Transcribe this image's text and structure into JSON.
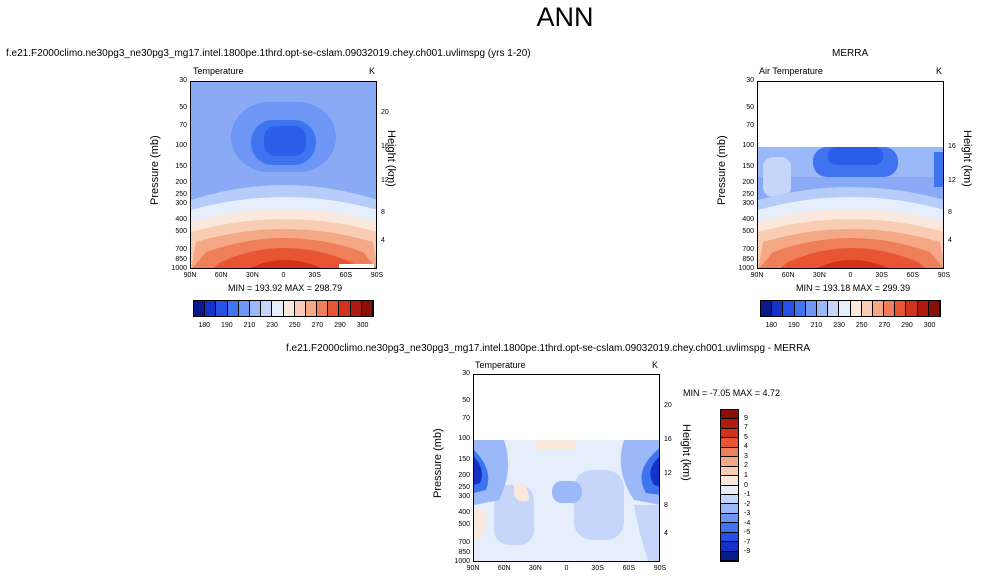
{
  "figure_title": "ANN",
  "panels": [
    {
      "caption": "f.e21.F2000climo.ne30pg3_ne30pg3_mg17.intel.1800pe.1thrd.opt-se-cslam.09032019.chey.ch001.uvlimspg (yrs 1-20)",
      "var_label": "Temperature",
      "units": "K",
      "ylabel": "Pressure (mb)",
      "y2label": "Height (km)",
      "minmax": "MIN = 193.92   MAX = 298.79"
    },
    {
      "caption": "MERRA",
      "var_label": "Air Temperature",
      "units": "K",
      "ylabel": "Pressure (mb)",
      "y2label": "Height (km)",
      "minmax": "MIN = 193.18   MAX = 299.39"
    },
    {
      "caption": "f.e21.F2000climo.ne30pg3_ne30pg3_mg17.intel.1800pe.1thrd.opt-se-cslam.09032019.chey.ch001.uvlimspg - MERRA",
      "var_label": "Temperature",
      "units": "K",
      "ylabel": "Pressure (mb)",
      "y2label": "Height (km)",
      "minmax": "MIN = -7.05   MAX =  4.72"
    }
  ],
  "pressure_ticks": [
    "30",
    "50",
    "70",
    "100",
    "150",
    "200",
    "250",
    "300",
    "400",
    "500",
    "700",
    "850",
    "1000"
  ],
  "height_ticks_top": [
    "20",
    "16",
    "12",
    "8",
    "4"
  ],
  "height_ticks_merra": [
    "16",
    "12",
    "8",
    "4"
  ],
  "lat_ticks": [
    "90N",
    "60N",
    "30N",
    "0",
    "30S",
    "60S",
    "90S"
  ],
  "abs_colorbar": {
    "labels": [
      "180",
      "190",
      "210",
      "230",
      "250",
      "270",
      "290",
      "300"
    ],
    "colors": [
      "#0a1a8c",
      "#1432c8",
      "#2550e6",
      "#3f74f0",
      "#6d96f5",
      "#9bb8f8",
      "#c6d6fa",
      "#e6eefb",
      "#fbe8dc",
      "#f8cdb4",
      "#f4a886",
      "#ef7f58",
      "#e85532",
      "#d2321a",
      "#ad1a0d",
      "#8a0f08"
    ]
  },
  "diff_colorbar": {
    "labels": [
      "9",
      "7",
      "5",
      "4",
      "3",
      "2",
      "1",
      "0",
      "-1",
      "-2",
      "-3",
      "-4",
      "-5",
      "-7",
      "-9"
    ],
    "colors": [
      "#8a0f08",
      "#b21a0e",
      "#d2321a",
      "#e85532",
      "#ef7f58",
      "#f4a886",
      "#f8cdb4",
      "#fbe8dc",
      "#e6eefb",
      "#c6d6fa",
      "#9bb8f8",
      "#6d96f5",
      "#3f74f0",
      "#2550e6",
      "#1432c8",
      "#0a1a8c"
    ]
  },
  "chart_data": [
    {
      "type": "heatmap",
      "title": "Temperature",
      "x": [
        "90N",
        "60N",
        "30N",
        "0",
        "30S",
        "60S",
        "90S"
      ],
      "y": [
        30,
        50,
        70,
        100,
        150,
        200,
        250,
        300,
        400,
        500,
        700,
        850,
        1000
      ],
      "z_range": [
        193.92,
        298.79
      ],
      "units": "K",
      "xlabel": "",
      "ylabel": "Pressure (mb)",
      "y2label": "Height (km)"
    },
    {
      "type": "heatmap",
      "title": "Air Temperature",
      "x": [
        "90N",
        "60N",
        "30N",
        "0",
        "30S",
        "60S",
        "90S"
      ],
      "y": [
        100,
        150,
        200,
        250,
        300,
        400,
        500,
        700,
        850,
        1000
      ],
      "z_range": [
        193.18,
        299.39
      ],
      "units": "K",
      "xlabel": "",
      "ylabel": "Pressure (mb)",
      "y2label": "Height (km)"
    },
    {
      "type": "heatmap",
      "title": "Temperature",
      "x": [
        "90N",
        "60N",
        "30N",
        "0",
        "30S",
        "60S",
        "90S"
      ],
      "y": [
        100,
        150,
        200,
        250,
        300,
        400,
        500,
        700,
        850,
        1000
      ],
      "z_range": [
        -7.05,
        4.72
      ],
      "units": "K",
      "xlabel": "",
      "ylabel": "Pressure (mb)",
      "y2label": "Height (km)"
    }
  ]
}
